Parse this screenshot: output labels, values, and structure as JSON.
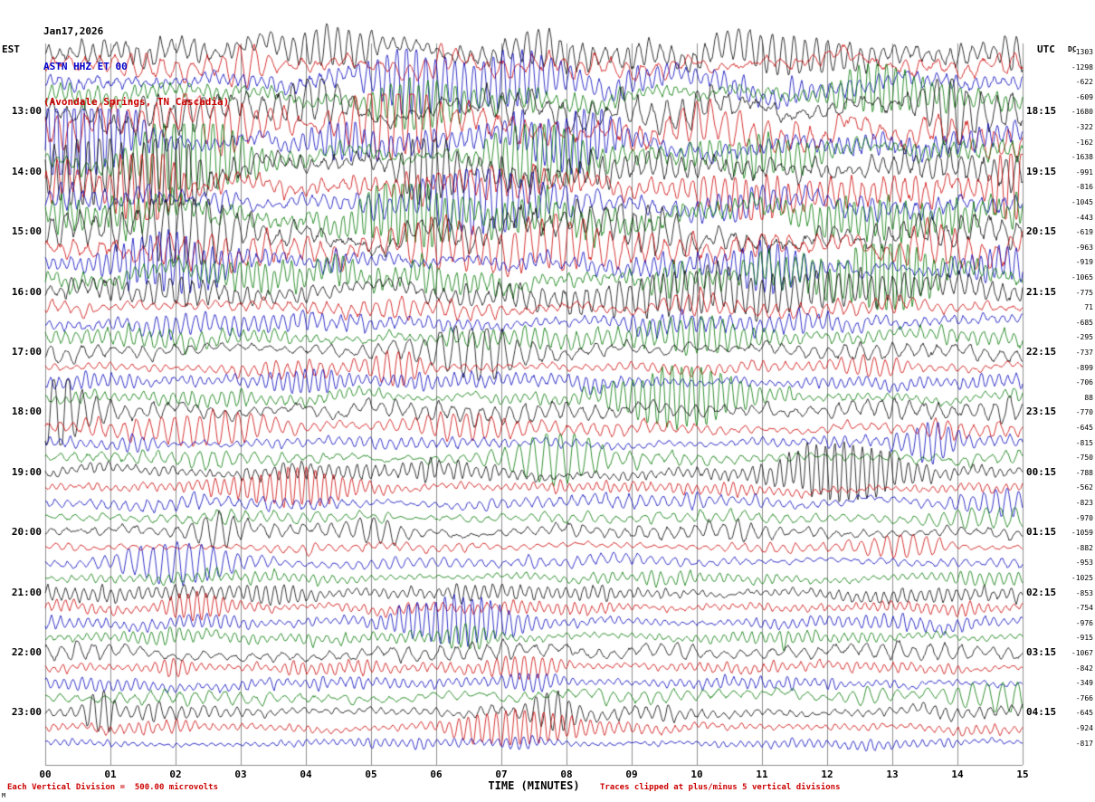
{
  "header": {
    "date": "Jan17,2026",
    "station": "ASTN HHZ ET 00",
    "location": "(Avondale Springs, TN Cascadia)"
  },
  "axes": {
    "left_title": "EST",
    "right_title": "UTC",
    "dc_title": "DC"
  },
  "footer": {
    "scale_note": "Each Vertical Division =  500.00 microvolts",
    "x_axis_label": "TIME (MINUTES)",
    "clip_note": "Traces clipped at plus/minus 5 vertical divisions",
    "corner_mark": "M"
  },
  "chart_data": {
    "type": "line",
    "title": "ASTN HHZ ET 00 (Avondale Springs, TN Cascadia) helicorder seismogram Jan17,2026",
    "xlabel": "TIME (MINUTES)",
    "x_range_minutes": [
      0,
      15
    ],
    "minutes_per_line": 15,
    "grid": true,
    "x_ticks": [
      "00",
      "01",
      "02",
      "03",
      "04",
      "05",
      "06",
      "07",
      "08",
      "09",
      "10",
      "11",
      "12",
      "13",
      "14",
      "15"
    ],
    "est_time_labels": [
      "13:00",
      "14:00",
      "15:00",
      "16:00",
      "17:00",
      "18:00",
      "19:00",
      "20:00",
      "21:00",
      "22:00",
      "23:00"
    ],
    "utc_time_labels": [
      "18:15",
      "19:15",
      "20:15",
      "21:15",
      "22:15",
      "23:15",
      "00:15",
      "01:15",
      "02:15",
      "03:15",
      "04:15"
    ],
    "hour_label_first_row": 4,
    "hour_label_row_step": 4,
    "num_traces": 47,
    "trace_color_cycle": [
      "#000000",
      "#cc0000",
      "#0000bb",
      "#007700"
    ],
    "dc_offsets": [
      -1303,
      -1298,
      -622,
      -609,
      -1680,
      -322,
      -162,
      -1638,
      -991,
      -816,
      -1045,
      -443,
      -619,
      -963,
      -919,
      -1065,
      -775,
      71,
      -685,
      -295,
      -737,
      -899,
      -706,
      88,
      -770,
      -645,
      -815,
      -750,
      -788,
      -562,
      -823,
      -970,
      -1059,
      -882,
      -953,
      -1025,
      -853,
      -754,
      -976,
      -915,
      -1067,
      -842,
      -349,
      -766,
      -645,
      -924,
      -817
    ],
    "trace_amplitudes": [
      9,
      8,
      9,
      8,
      12,
      12,
      10,
      9,
      12,
      11,
      9,
      12,
      12,
      11,
      8,
      11,
      11,
      7,
      8,
      8,
      7,
      5,
      6,
      6,
      8,
      6,
      5,
      6,
      7,
      5,
      6,
      5,
      6,
      4,
      4.5,
      4.5,
      6,
      5,
      5.5,
      5,
      7,
      5,
      4.5,
      5.5,
      5.5,
      4.5,
      3.5
    ],
    "clip_divisions": 5,
    "microvolts_per_division": 500.0
  }
}
